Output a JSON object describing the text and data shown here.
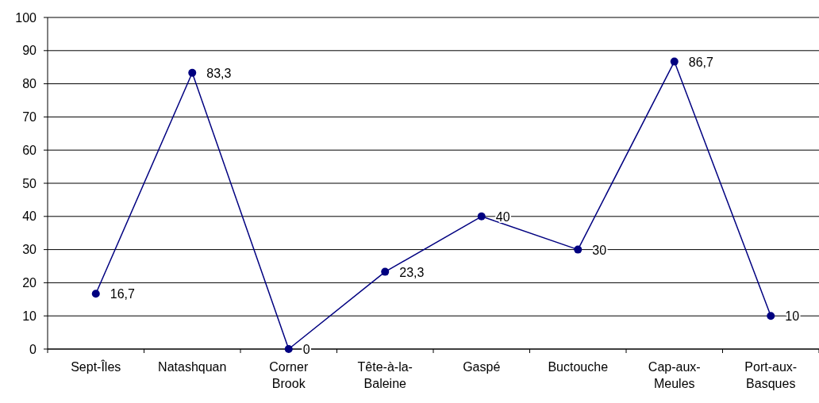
{
  "chart_data": {
    "type": "line",
    "categories": [
      "Sept-Îles",
      "Natashquan",
      "Corner Brook",
      "Tête-à-la-Baleine",
      "Gaspé",
      "Buctouche",
      "Cap-aux-Meules",
      "Port-aux-Basques"
    ],
    "series": [
      {
        "color": "#000080",
        "values": [
          16.7,
          83.3,
          0,
          23.3,
          40,
          30,
          86.7,
          10
        ],
        "value_labels": [
          "16,7",
          "83,3",
          "0",
          "23,3",
          "40",
          "30",
          "86,7",
          "10"
        ]
      }
    ],
    "ylim": [
      0,
      100
    ],
    "yticks": [
      0,
      10,
      20,
      30,
      40,
      50,
      60,
      70,
      80,
      90,
      100
    ],
    "grid": "y",
    "marker": "circle",
    "line_style": "solid"
  }
}
